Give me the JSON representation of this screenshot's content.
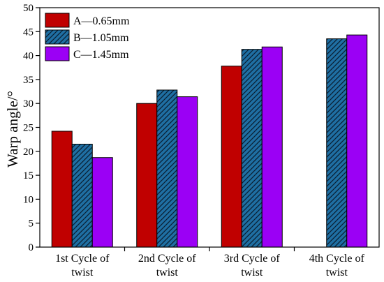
{
  "chart_data": {
    "type": "bar",
    "title": "",
    "xlabel": "",
    "ylabel": "Warp angle/°",
    "ylim": [
      0,
      50
    ],
    "yticks": [
      0,
      5,
      10,
      15,
      20,
      25,
      30,
      35,
      40,
      45,
      50
    ],
    "categories": [
      [
        "1st Cycle of",
        "twist"
      ],
      [
        "2nd Cycle of",
        "twist"
      ],
      [
        "3rd Cycle of",
        "twist"
      ],
      [
        "4th Cycle of",
        "twist"
      ]
    ],
    "series": [
      {
        "name": "A—0.65mm",
        "color": "#c00000",
        "pattern": "solid",
        "values": [
          24.2,
          30.0,
          37.8,
          null
        ]
      },
      {
        "name": "B—1.05mm",
        "color": "#1f6fa3",
        "pattern": "hatched",
        "values": [
          21.5,
          32.8,
          41.3,
          43.5
        ]
      },
      {
        "name": "C—1.45mm",
        "color": "#9b00f5",
        "pattern": "solid",
        "values": [
          18.7,
          31.4,
          41.8,
          44.3
        ]
      }
    ],
    "legend": {
      "position": "top-left"
    },
    "grid": false
  }
}
